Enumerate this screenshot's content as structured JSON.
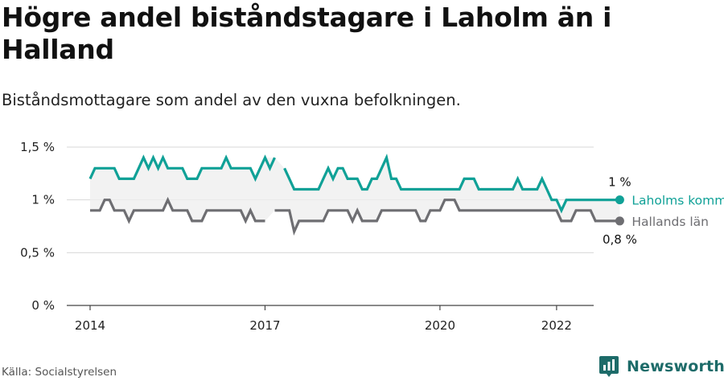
{
  "title": "Högre andel biståndstagare i Laholm än i Halland",
  "subtitle": "Biståndsmottagare som andel av den vuxna befolkningen.",
  "source": "Källa: Socialstyrelsen",
  "brand": {
    "name": "Newsworthy",
    "icon": "newsworthy-logo-icon"
  },
  "colors": {
    "laholm": "#10a197",
    "halland": "#6e6e72",
    "band": "#eeeeee",
    "grid": "#d7d7d7",
    "axis": "#444444"
  },
  "chart_data": {
    "type": "line",
    "y_ticks": [
      {
        "value": 0,
        "label": "0 %"
      },
      {
        "value": 0.5,
        "label": "0,5 %"
      },
      {
        "value": 1.0,
        "label": "1 %"
      },
      {
        "value": 1.5,
        "label": "1,5 %"
      }
    ],
    "x_ticks": [
      {
        "value": 2014,
        "label": "2014"
      },
      {
        "value": 2017,
        "label": "2017"
      },
      {
        "value": 2020,
        "label": "2020"
      },
      {
        "value": 2022,
        "label": "2022"
      }
    ],
    "xlim": [
      2014,
      2022.25
    ],
    "ylim": [
      0,
      1.5
    ],
    "grid": true,
    "series": [
      {
        "name": "Laholms kommun",
        "color": "#10a197",
        "last_label": "1 %",
        "x_start": 2014,
        "step_months": 1,
        "values": [
          1.2,
          1.3,
          1.3,
          1.3,
          1.3,
          1.3,
          1.2,
          1.2,
          1.2,
          1.2,
          1.3,
          1.4,
          1.3,
          1.4,
          1.3,
          1.4,
          1.3,
          1.3,
          1.3,
          1.3,
          1.2,
          1.2,
          1.2,
          1.3,
          1.3,
          1.3,
          1.3,
          1.3,
          1.4,
          1.3,
          1.3,
          1.3,
          1.3,
          1.3,
          1.2,
          1.3,
          1.4,
          1.3,
          1.4,
          null,
          1.3,
          1.2,
          1.1,
          1.1,
          1.1,
          1.1,
          1.1,
          1.1,
          1.2,
          1.3,
          1.2,
          1.3,
          1.3,
          1.2,
          1.2,
          1.2,
          1.1,
          1.1,
          1.2,
          1.2,
          1.3,
          1.4,
          1.2,
          1.2,
          1.1,
          1.1,
          1.1,
          1.1,
          1.1,
          1.1,
          1.1,
          1.1,
          1.1,
          1.1,
          1.1,
          1.1,
          1.1,
          1.2,
          1.2,
          1.2,
          1.1,
          1.1,
          1.1,
          1.1,
          1.1,
          1.1,
          1.1,
          1.1,
          1.2,
          1.1,
          1.1,
          1.1,
          1.1,
          1.2,
          1.1,
          1.0,
          1.0,
          0.9,
          1.0,
          1.0,
          1.0,
          1.0,
          1.0,
          1.0,
          1.0,
          1.0,
          1.0,
          1.0,
          1.0,
          1.0
        ]
      },
      {
        "name": "Hallands län",
        "color": "#6e6e72",
        "last_label": "0,8 %",
        "x_start": 2014,
        "step_months": 1,
        "values": [
          0.9,
          0.9,
          0.9,
          1.0,
          1.0,
          0.9,
          0.9,
          0.9,
          0.8,
          0.9,
          0.9,
          0.9,
          0.9,
          0.9,
          0.9,
          0.9,
          1.0,
          0.9,
          0.9,
          0.9,
          0.9,
          0.8,
          0.8,
          0.8,
          0.9,
          0.9,
          0.9,
          0.9,
          0.9,
          0.9,
          0.9,
          0.9,
          0.8,
          0.9,
          0.8,
          0.8,
          0.8,
          null,
          0.9,
          0.9,
          0.9,
          0.9,
          0.7,
          0.8,
          0.8,
          0.8,
          0.8,
          0.8,
          0.8,
          0.9,
          0.9,
          0.9,
          0.9,
          0.9,
          0.8,
          0.9,
          0.8,
          0.8,
          0.8,
          0.8,
          0.9,
          0.9,
          0.9,
          0.9,
          0.9,
          0.9,
          0.9,
          0.9,
          0.8,
          0.8,
          0.9,
          0.9,
          0.9,
          1.0,
          1.0,
          1.0,
          0.9,
          0.9,
          0.9,
          0.9,
          0.9,
          0.9,
          0.9,
          0.9,
          0.9,
          0.9,
          0.9,
          0.9,
          0.9,
          0.9,
          0.9,
          0.9,
          0.9,
          0.9,
          0.9,
          0.9,
          0.9,
          0.8,
          0.8,
          0.8,
          0.9,
          0.9,
          0.9,
          0.9,
          0.8,
          0.8,
          0.8,
          0.8,
          0.8,
          0.8
        ]
      }
    ]
  }
}
